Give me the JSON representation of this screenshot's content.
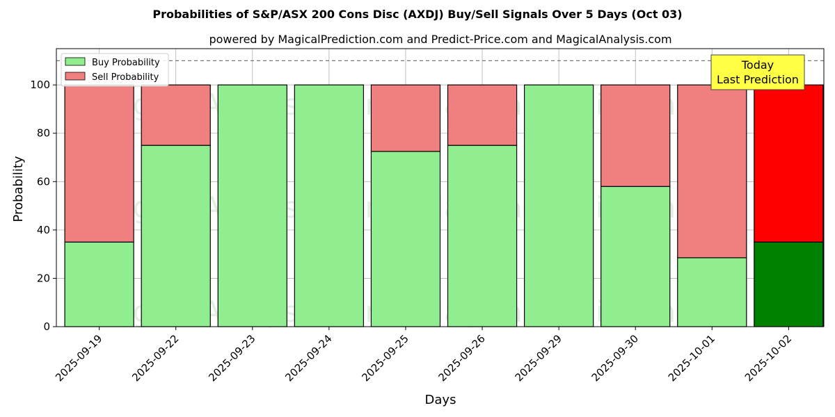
{
  "chart_data": {
    "type": "bar",
    "stacked": true,
    "title": "Probabilities of S&P/ASX 200 Cons Disc (AXDJ) Buy/Sell Signals Over 5 Days (Oct 03)",
    "subtitle": "powered by MagicalPrediction.com and Predict-Price.com and MagicalAnalysis.com",
    "xlabel": "Days",
    "ylabel": "Probability",
    "ylim": [
      0,
      115
    ],
    "yticks": [
      0,
      20,
      40,
      60,
      80,
      100
    ],
    "grid": true,
    "legend_position": "top-left",
    "categories": [
      "2025-09-19",
      "2025-09-22",
      "2025-09-23",
      "2025-09-24",
      "2025-09-25",
      "2025-09-26",
      "2025-09-29",
      "2025-09-30",
      "2025-10-01",
      "2025-10-02"
    ],
    "series": [
      {
        "name": "Buy Probability",
        "values": [
          35,
          75,
          100,
          100,
          72.5,
          75,
          100,
          58,
          28.5,
          35
        ]
      },
      {
        "name": "Sell Probability",
        "values": [
          65,
          25,
          0,
          0,
          27.5,
          25,
          0,
          42,
          71.5,
          65
        ]
      }
    ],
    "reference_line": {
      "y": 110,
      "style": "dashed"
    },
    "annotation": {
      "lines": [
        "Today",
        "Last Prediction"
      ],
      "category_index": 9
    },
    "colors": {
      "buy": "#90ee90",
      "sell": "#f08080",
      "buy_highlight": "#008000",
      "sell_highlight": "#ff0000",
      "annotation_bg": "#ffff44"
    }
  },
  "watermarks": [
    "MagicalAnalysis.com",
    "MagicalPrediction.com"
  ]
}
